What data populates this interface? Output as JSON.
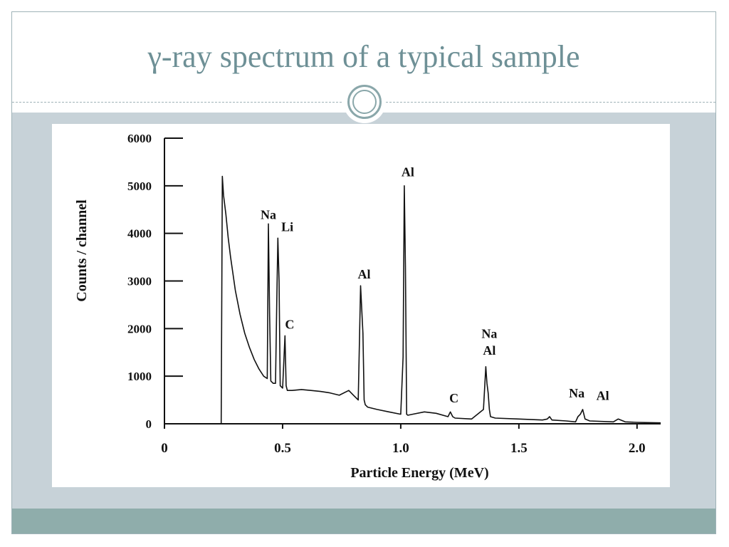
{
  "slide": {
    "title": "γ-ray spectrum of a typical sample"
  },
  "chart_data": {
    "type": "line",
    "title": "",
    "xlabel": "Particle Energy  (MeV)",
    "ylabel": "Counts / channel",
    "xlim": [
      0,
      2.1
    ],
    "ylim": [
      0,
      6000
    ],
    "x_ticks": [
      {
        "value": 0,
        "label": "0"
      },
      {
        "value": 0.5,
        "label": "0.5"
      },
      {
        "value": 1.0,
        "label": "1.0"
      },
      {
        "value": 1.5,
        "label": "1.5"
      },
      {
        "value": 2.0,
        "label": "2.0"
      }
    ],
    "y_ticks": [
      {
        "value": 0,
        "label": "0"
      },
      {
        "value": 1000,
        "label": "1000"
      },
      {
        "value": 2000,
        "label": "2000"
      },
      {
        "value": 3000,
        "label": "3000"
      },
      {
        "value": 4000,
        "label": "4000"
      },
      {
        "value": 5000,
        "label": "5000"
      },
      {
        "value": 6000,
        "label": "6000"
      }
    ],
    "grid": false,
    "legend": "none",
    "line_color": "#111111",
    "series": [
      {
        "x": [
          0.24,
          0.245,
          0.25,
          0.26,
          0.27,
          0.28,
          0.3,
          0.32,
          0.34,
          0.36,
          0.38,
          0.4,
          0.42,
          0.435,
          0.44,
          0.445,
          0.45,
          0.46,
          0.47,
          0.475,
          0.48,
          0.485,
          0.49,
          0.5,
          0.51,
          0.515,
          0.52,
          0.54,
          0.58,
          0.62,
          0.66,
          0.7,
          0.74,
          0.78,
          0.8,
          0.82,
          0.83,
          0.84,
          0.845,
          0.85,
          0.86,
          0.9,
          0.95,
          1.0,
          1.01,
          1.015,
          1.02,
          1.025,
          1.03,
          1.05,
          1.1,
          1.15,
          1.2,
          1.21,
          1.22,
          1.23,
          1.3,
          1.35,
          1.36,
          1.365,
          1.37,
          1.375,
          1.38,
          1.4,
          1.5,
          1.6,
          1.62,
          1.63,
          1.64,
          1.7,
          1.74,
          1.75,
          1.76,
          1.77,
          1.78,
          1.8,
          1.9,
          1.92,
          1.95,
          2.0,
          2.1
        ],
        "y": [
          0,
          5200,
          4800,
          4400,
          3900,
          3500,
          2800,
          2300,
          1900,
          1600,
          1350,
          1150,
          1000,
          950,
          4200,
          2300,
          900,
          850,
          850,
          2500,
          3900,
          3000,
          800,
          750,
          1850,
          800,
          700,
          700,
          720,
          700,
          680,
          650,
          600,
          700,
          600,
          500,
          2900,
          1900,
          500,
          400,
          350,
          300,
          250,
          200,
          1400,
          5000,
          3300,
          200,
          180,
          200,
          250,
          220,
          150,
          250,
          150,
          120,
          100,
          300,
          1200,
          850,
          650,
          300,
          150,
          120,
          100,
          80,
          100,
          150,
          80,
          60,
          40,
          150,
          200,
          300,
          100,
          60,
          40,
          100,
          40,
          30,
          20
        ]
      }
    ],
    "annotations": [
      {
        "text": "Na",
        "x": 0.44,
        "y": 4300
      },
      {
        "text": "Li",
        "x": 0.52,
        "y": 4050
      },
      {
        "text": "C",
        "x": 0.53,
        "y": 2000
      },
      {
        "text": "Al",
        "x": 0.845,
        "y": 3050
      },
      {
        "text": "Al",
        "x": 1.03,
        "y": 5200
      },
      {
        "text": "C",
        "x": 1.225,
        "y": 450
      },
      {
        "text": "Na",
        "x": 1.375,
        "y": 1800
      },
      {
        "text": "Al",
        "x": 1.375,
        "y": 1450
      },
      {
        "text": "Na",
        "x": 1.745,
        "y": 550
      },
      {
        "text": "Al",
        "x": 1.855,
        "y": 500
      }
    ]
  }
}
